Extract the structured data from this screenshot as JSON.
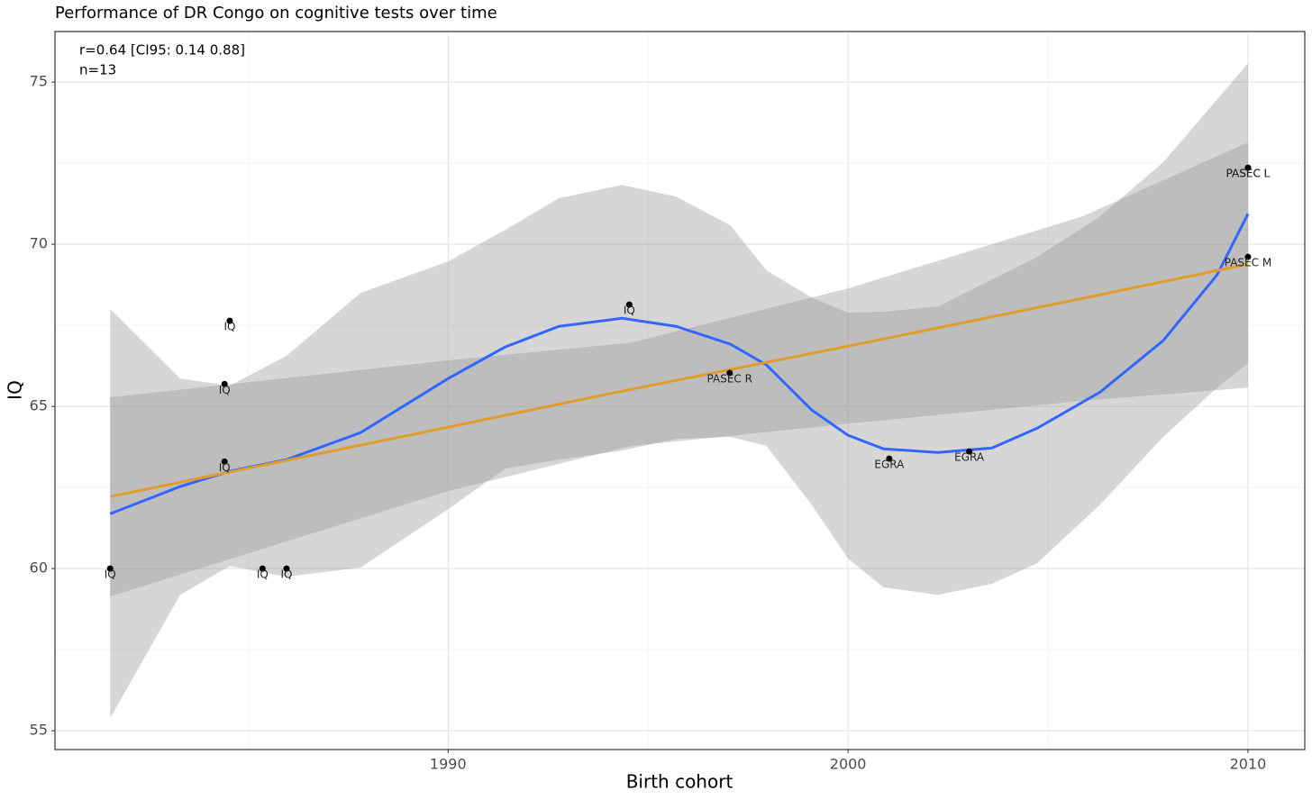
{
  "chart_data": {
    "type": "scatter",
    "title": "Performance of DR Congo on cognitive tests over time",
    "annotations": [
      "r=0.64 [CI95: 0.14 0.88]",
      "n=13"
    ],
    "xlabel": "Birth cohort",
    "ylabel": "IQ",
    "xlim": [
      1980.17,
      2011.42
    ],
    "ylim": [
      54.42,
      76.56
    ],
    "xticks": [
      1990,
      2000,
      2010
    ],
    "yticks": [
      55,
      60,
      65,
      70,
      75
    ],
    "xminor": [
      1985,
      1995,
      2005
    ],
    "yminor": [
      57.5,
      62.5,
      67.5,
      72.5
    ],
    "grid": true,
    "points": {
      "color": "#000000",
      "x": [
        1981.55,
        1984.54,
        1984.41,
        1984.41,
        1985.36,
        1985.96,
        1994.53,
        1997.04,
        2001.03,
        2003.03,
        2010,
        2010,
        2010
      ],
      "values": [
        60,
        67.64,
        65.69,
        63.3,
        60,
        60,
        68.14,
        66.03,
        63.39,
        63.61,
        72.36,
        72.36,
        69.61
      ],
      "labels": [
        "IQ",
        "IQ",
        "IQ",
        "IQ",
        "IQ",
        "IQ",
        "IQ",
        "PASEC R",
        "EGRA",
        "EGRA",
        "PASEC L",
        "PASEC L",
        "PASEC M"
      ]
    },
    "fits": [
      {
        "color": "#3366ff",
        "band_color": "#999999",
        "x": [
          1981.55,
          1983.3,
          1984.54,
          1985.96,
          1987.81,
          1990.0,
          1991.42,
          1992.77,
          1994.35,
          1995.7,
          1997.06,
          1997.96,
          1999.09,
          2000.0,
          2000.89,
          2002.25,
          2003.6,
          2004.73,
          2006.3,
          2007.88,
          2009.23,
          2010.0
        ],
        "values": [
          61.69,
          62.53,
          63.0,
          63.36,
          64.19,
          65.86,
          66.83,
          67.47,
          67.72,
          67.47,
          66.92,
          66.28,
          64.89,
          64.11,
          63.69,
          63.58,
          63.72,
          64.33,
          65.44,
          67.03,
          69.06,
          70.94
        ],
        "upper": [
          68.0,
          65.86,
          65.64,
          66.56,
          68.5,
          69.47,
          70.44,
          71.42,
          71.83,
          71.47,
          70.58,
          69.19,
          68.36,
          67.89,
          67.92,
          68.08,
          68.92,
          69.61,
          70.86,
          72.53,
          74.47,
          75.58
        ],
        "lower": [
          55.39,
          59.19,
          60.08,
          59.75,
          60.03,
          61.83,
          63.08,
          63.36,
          63.64,
          64.0,
          64.06,
          63.78,
          61.97,
          60.31,
          59.42,
          59.19,
          59.53,
          60.17,
          61.97,
          64.06,
          65.58,
          66.33
        ]
      },
      {
        "color": "#e09c2a",
        "band_color": "#999999",
        "x": [
          1981.55,
          1990,
          1994.58,
          2000,
          2005.86,
          2010
        ],
        "values": [
          62.22,
          64.36,
          65.53,
          66.86,
          68.33,
          69.39
        ],
        "upper": [
          65.28,
          66.42,
          66.97,
          68.64,
          70.86,
          73.14
        ],
        "lower": [
          59.14,
          62.39,
          63.78,
          64.47,
          65.17,
          65.58
        ]
      }
    ]
  }
}
